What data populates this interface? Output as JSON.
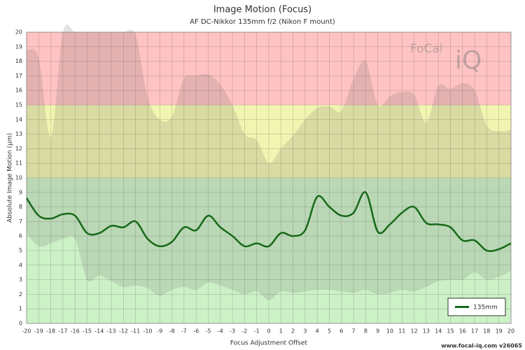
{
  "chart_data": {
    "type": "line",
    "title": "Image Motion (Focus)",
    "subtitle": "AF DC-Nikkor 135mm f/2 (Nikon F mount)",
    "x_label": "Focus Adjustment Offset",
    "y_label": "Absolute Image Motion (µm)",
    "footer": "www.focal-iq.com  v26065",
    "watermark": [
      "FoCal",
      "iQ"
    ],
    "x": [
      -20,
      -19,
      -18,
      -17,
      -16,
      -15,
      -14,
      -13,
      -12,
      -11,
      -10,
      -9,
      -8,
      -7,
      -6,
      -5,
      -4,
      -3,
      -2,
      -1,
      0,
      1,
      2,
      3,
      4,
      5,
      6,
      7,
      8,
      9,
      10,
      11,
      12,
      13,
      14,
      15,
      16,
      17,
      18,
      19,
      20
    ],
    "series": [
      {
        "name": "135mm",
        "color": "#17691a",
        "values": [
          8.6,
          7.4,
          7.2,
          7.5,
          7.4,
          6.2,
          6.2,
          6.7,
          6.6,
          7.0,
          5.8,
          5.3,
          5.6,
          6.6,
          6.4,
          7.4,
          6.6,
          6.0,
          5.3,
          5.5,
          5.3,
          6.2,
          6.0,
          6.4,
          8.7,
          8.0,
          7.4,
          7.6,
          9.0,
          6.3,
          6.8,
          7.6,
          8.0,
          6.9,
          6.8,
          6.6,
          5.7,
          5.7,
          5.0,
          5.1,
          5.5
        ]
      }
    ],
    "envelope": {
      "color": "rgba(90,90,90,0.16)",
      "upper": [
        18.8,
        18.2,
        12.8,
        20,
        20,
        20,
        20,
        20,
        20,
        19.8,
        15.5,
        14.0,
        14.2,
        16.8,
        17.0,
        17.1,
        16.4,
        15.0,
        13.0,
        12.6,
        11.0,
        12.0,
        12.9,
        14.0,
        14.8,
        14.9,
        14.6,
        16.8,
        18.0,
        15.0,
        15.6,
        15.9,
        15.7,
        13.8,
        16.3,
        16.1,
        16.5,
        16.0,
        13.6,
        13.2,
        13.3
      ],
      "lower": [
        6.2,
        5.3,
        5.5,
        5.8,
        5.8,
        3.0,
        3.3,
        2.9,
        2.5,
        2.6,
        2.4,
        1.9,
        2.3,
        2.5,
        2.3,
        2.8,
        2.6,
        2.3,
        2.0,
        2.2,
        1.6,
        2.2,
        2.1,
        2.2,
        2.3,
        2.3,
        2.2,
        2.1,
        2.3,
        2.0,
        2.1,
        2.3,
        2.2,
        2.5,
        2.9,
        3.0,
        3.0,
        3.5,
        3.0,
        3.2,
        3.6
      ]
    },
    "bands": [
      {
        "from": 0,
        "to": 10,
        "color": "#cdf1c7"
      },
      {
        "from": 10,
        "to": 15,
        "color": "#f2f5b1"
      },
      {
        "from": 15,
        "to": 20,
        "color": "#ffc3c3"
      }
    ],
    "xlim": [
      -20,
      20
    ],
    "ylim": [
      0,
      20
    ],
    "xticks": [
      -20,
      -19,
      -18,
      -17,
      -16,
      -15,
      -14,
      -13,
      -12,
      -11,
      -10,
      -9,
      -8,
      -7,
      -6,
      -5,
      -4,
      -3,
      -2,
      -1,
      0,
      1,
      2,
      3,
      4,
      5,
      6,
      7,
      8,
      9,
      10,
      11,
      12,
      13,
      14,
      15,
      16,
      17,
      18,
      19,
      20
    ],
    "yticks": [
      0,
      1,
      2,
      3,
      4,
      5,
      6,
      7,
      8,
      9,
      10,
      11,
      12,
      13,
      14,
      15,
      16,
      17,
      18,
      19,
      20
    ],
    "grid": true,
    "legend": "lower right"
  }
}
